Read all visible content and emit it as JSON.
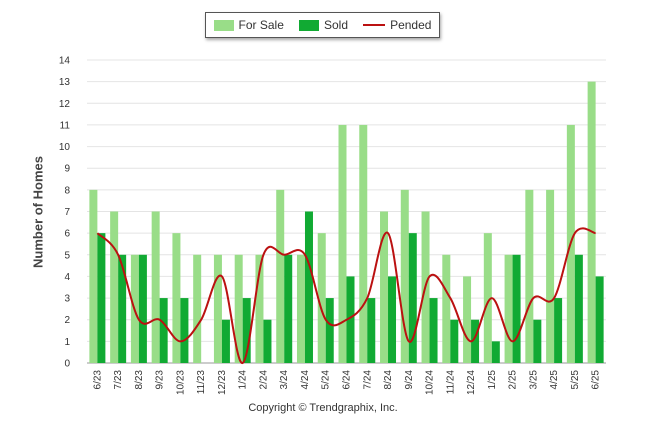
{
  "chart_data": {
    "type": "bar",
    "ylabel": "Number of Homes",
    "xlabel": "",
    "ylim": [
      0,
      14
    ],
    "yticks": [
      0,
      1,
      2,
      3,
      4,
      5,
      6,
      7,
      8,
      9,
      10,
      11,
      12,
      13,
      14
    ],
    "categories": [
      "6/23",
      "7/23",
      "8/23",
      "9/23",
      "10/23",
      "11/23",
      "12/23",
      "1/24",
      "2/24",
      "3/24",
      "4/24",
      "5/24",
      "6/24",
      "7/24",
      "8/24",
      "9/24",
      "10/24",
      "11/24",
      "12/24",
      "1/25",
      "2/25",
      "3/25",
      "4/25",
      "5/25",
      "6/25"
    ],
    "series": [
      {
        "name": "For Sale",
        "kind": "bar",
        "color": "#99dd88",
        "values": [
          8,
          7,
          5,
          7,
          6,
          5,
          5,
          5,
          5,
          8,
          5,
          6,
          11,
          11,
          7,
          8,
          7,
          5,
          4,
          6,
          5,
          8,
          8,
          11,
          13
        ]
      },
      {
        "name": "Sold",
        "kind": "bar",
        "color": "#11aa33",
        "values": [
          6,
          5,
          5,
          3,
          3,
          0,
          2,
          3,
          2,
          5,
          7,
          3,
          4,
          3,
          4,
          6,
          3,
          2,
          2,
          1,
          5,
          2,
          3,
          5,
          4
        ]
      },
      {
        "name": "Pended",
        "kind": "line",
        "color": "#bb1111",
        "values": [
          6,
          5,
          2,
          2,
          1,
          2,
          4,
          0,
          5,
          5,
          5,
          2,
          2,
          3,
          6,
          1,
          4,
          3,
          1,
          3,
          1,
          3,
          3,
          6,
          6
        ]
      }
    ],
    "grid": true,
    "legend": "top-center"
  },
  "footer": {
    "copyright": "Copyright © Trendgraphix, Inc."
  }
}
